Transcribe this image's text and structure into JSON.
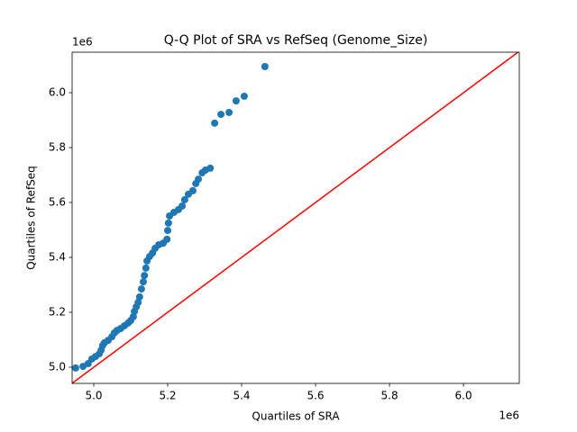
{
  "chart_data": {
    "type": "scatter",
    "title": "Q-Q Plot of SRA vs RefSeq (Genome_Size)",
    "x_label": "Quartiles of SRA",
    "y_label": "Quartiles of RefSeq",
    "x_offset_label": "1e6",
    "y_offset_label": "1e6",
    "xlim": [
      4.9415,
      6.151
    ],
    "ylim": [
      4.941,
      6.1475
    ],
    "xticks": [
      {
        "value": 5.0,
        "label": "5.0"
      },
      {
        "value": 5.2,
        "label": "5.2"
      },
      {
        "value": 5.4,
        "label": "5.4"
      },
      {
        "value": 5.6,
        "label": "5.6"
      },
      {
        "value": 5.8,
        "label": "5.8"
      },
      {
        "value": 6.0,
        "label": "6.0"
      }
    ],
    "yticks": [
      {
        "value": 5.0,
        "label": "5.0"
      },
      {
        "value": 5.2,
        "label": "5.2"
      },
      {
        "value": 5.4,
        "label": "5.4"
      },
      {
        "value": 5.6,
        "label": "5.6"
      },
      {
        "value": 5.8,
        "label": "5.8"
      },
      {
        "value": 6.0,
        "label": "6.0"
      }
    ],
    "reference_line_color": "#ff0000",
    "series": [
      {
        "color": "#1f77b4",
        "x": [
          4.951,
          4.971,
          4.985,
          4.995,
          5.005,
          5.015,
          5.02,
          5.024,
          5.029,
          5.039,
          5.049,
          5.056,
          5.063,
          5.073,
          5.083,
          5.093,
          5.1,
          5.107,
          5.11,
          5.115,
          5.12,
          5.124,
          5.129,
          5.134,
          5.137,
          5.141,
          5.144,
          5.151,
          5.159,
          5.166,
          5.176,
          5.188,
          5.198,
          5.2,
          5.202,
          5.205,
          5.217,
          5.229,
          5.239,
          5.246,
          5.256,
          5.268,
          5.276,
          5.283,
          5.293,
          5.302,
          5.315,
          5.327,
          5.344,
          5.366,
          5.385,
          5.407,
          5.463
        ],
        "values": [
          4.997,
          5.003,
          5.013,
          5.03,
          5.039,
          5.049,
          5.062,
          5.079,
          5.089,
          5.098,
          5.111,
          5.125,
          5.134,
          5.141,
          5.151,
          5.161,
          5.17,
          5.184,
          5.203,
          5.22,
          5.236,
          5.256,
          5.285,
          5.311,
          5.334,
          5.361,
          5.387,
          5.403,
          5.416,
          5.433,
          5.446,
          5.452,
          5.466,
          5.498,
          5.525,
          5.551,
          5.564,
          5.574,
          5.587,
          5.61,
          5.63,
          5.643,
          5.669,
          5.685,
          5.708,
          5.718,
          5.725,
          5.889,
          5.921,
          5.928,
          5.97,
          5.987,
          6.095
        ]
      }
    ]
  }
}
